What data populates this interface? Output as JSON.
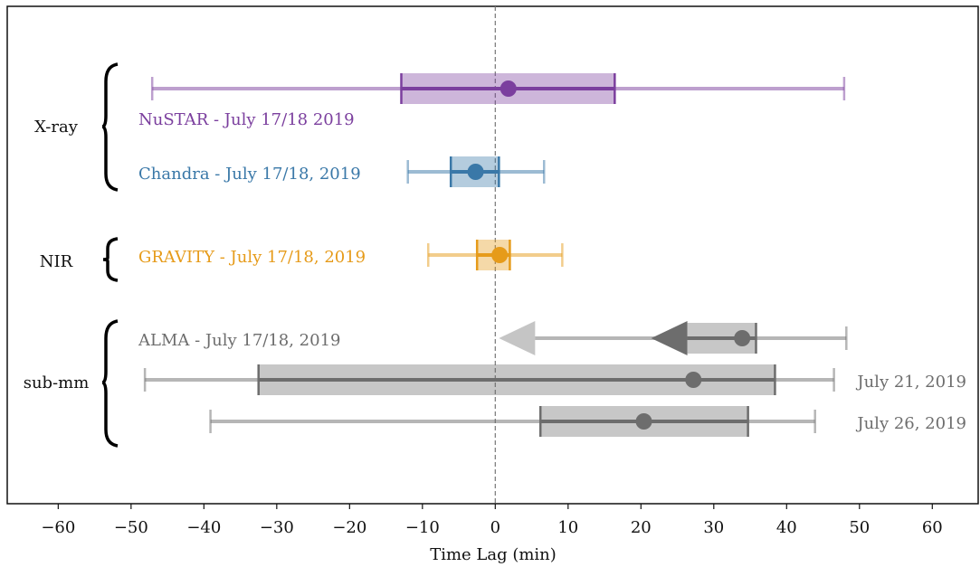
{
  "chart_data": {
    "type": "interval",
    "xlabel": "Time Lag (min)",
    "xlim": [
      -67,
      66.3
    ],
    "xticks": [
      {
        "value": -60,
        "label": "−60"
      },
      {
        "value": -50,
        "label": "−50"
      },
      {
        "value": -40,
        "label": "−40"
      },
      {
        "value": -30,
        "label": "−30"
      },
      {
        "value": -20,
        "label": "−20"
      },
      {
        "value": -10,
        "label": "−10"
      },
      0,
      10,
      20,
      30,
      40,
      50,
      60
    ],
    "reference_line": 0,
    "groups": [
      {
        "label": "X-ray",
        "series": [
          {
            "name": "NuSTAR - July 17/18 2019",
            "color": "#7b3f9e",
            "label_side": "left",
            "value": 1.8,
            "box": [
              -12.9,
              16.4
            ],
            "whisker": [
              -47.1,
              47.9
            ]
          },
          {
            "name": "Chandra - July 17/18, 2019",
            "color": "#3a78a8",
            "label_side": "left",
            "value": -2.7,
            "box": [
              -6.1,
              0.5
            ],
            "whisker": [
              -12.0,
              6.7
            ]
          }
        ]
      },
      {
        "label": "NIR",
        "series": [
          {
            "name": "GRAVITY - July 17/18, 2019",
            "color": "#e69b1a",
            "label_side": "left",
            "value": 0.6,
            "box": [
              -2.5,
              2.0
            ],
            "whisker": [
              -9.2,
              9.2
            ]
          }
        ]
      },
      {
        "label": "sub-mm",
        "series": [
          {
            "name": "ALMA - July 17/18, 2019",
            "color": "#6d6d6d",
            "label_side": "left",
            "value": 33.9,
            "box": [
              21.4,
              35.8
            ],
            "whisker": [
              0.5,
              48.2
            ],
            "box_arrow": true,
            "whisker_arrow": true
          },
          {
            "name": "July 21, 2019",
            "color": "#6d6d6d",
            "label_side": "right",
            "value": 27.2,
            "box": [
              -32.5,
              38.4
            ],
            "whisker": [
              -48.1,
              46.5
            ]
          },
          {
            "name": "July 26, 2019",
            "color": "#6d6d6d",
            "label_side": "right",
            "value": 20.4,
            "box": [
              6.2,
              34.7
            ],
            "whisker": [
              -39.1,
              43.9
            ]
          }
        ]
      }
    ]
  }
}
